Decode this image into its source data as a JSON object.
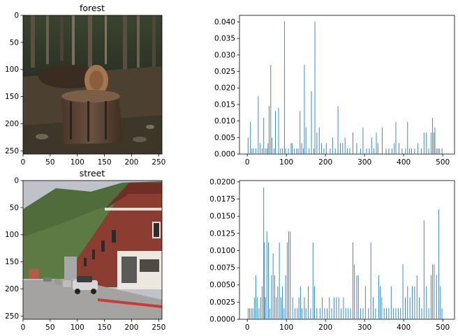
{
  "chart_data": [
    {
      "type": "image",
      "title": "forest",
      "image_description_icon": "forest-photo",
      "xlim": [
        0,
        256
      ],
      "ylim": [
        256,
        0
      ],
      "xticks": [
        0,
        50,
        100,
        150,
        200,
        250
      ],
      "yticks": [
        0,
        50,
        100,
        150,
        200,
        250
      ],
      "colors": {
        "sky": "#3c3f2c",
        "ground": "#4a3f2e",
        "stump": "#5a4535",
        "dark": "#22271a",
        "light_trunk": "#8a6a4a"
      }
    },
    {
      "type": "bar",
      "title": "",
      "xlabel": "",
      "ylabel": "",
      "xlim": [
        -20,
        530
      ],
      "ylim": [
        0,
        0.042
      ],
      "xticks": [
        0,
        100,
        200,
        300,
        400,
        500
      ],
      "yticks": [
        "0.000",
        "0.005",
        "0.010",
        "0.015",
        "0.020",
        "0.025",
        "0.030",
        "0.035",
        "0.040"
      ],
      "bar_color": "#1f77b4",
      "x": [
        2,
        8,
        12,
        16,
        22,
        28,
        33,
        38,
        42,
        46,
        50,
        53,
        56,
        60,
        63,
        68,
        72,
        80,
        85,
        90,
        95,
        98,
        105,
        112,
        115,
        120,
        126,
        130,
        135,
        139,
        143,
        146,
        150,
        158,
        164,
        170,
        173,
        178,
        184,
        190,
        196,
        202,
        212,
        218,
        225,
        232,
        238,
        244,
        250,
        256,
        262,
        270,
        280,
        290,
        296,
        305,
        312,
        318,
        324,
        330,
        334,
        345,
        355,
        362,
        370,
        376,
        380,
        388,
        396,
        405,
        410,
        415,
        420,
        428,
        436,
        445,
        452,
        458,
        464,
        470,
        474,
        477,
        480,
        484,
        488,
        492,
        498
      ],
      "values": [
        0.005,
        0.0097,
        0.0017,
        0.0017,
        0.0017,
        0.0175,
        0.0033,
        0.0017,
        0.011,
        0.0017,
        0.0017,
        0.0033,
        0.0145,
        0.027,
        0.005,
        0.0017,
        0.013,
        0.014,
        0.0017,
        0.0017,
        0.0402,
        0.0017,
        0.0017,
        0.0033,
        0.0033,
        0.0017,
        0.0017,
        0.0017,
        0.013,
        0.0033,
        0.0017,
        0.027,
        0.008,
        0.0017,
        0.019,
        0.0017,
        0.0402,
        0.0065,
        0.008,
        0.0033,
        0.0017,
        0.0033,
        0.0017,
        0.005,
        0.0017,
        0.0145,
        0.0033,
        0.0033,
        0.005,
        0.0017,
        0.0017,
        0.0065,
        0.0033,
        0.0017,
        0.008,
        0.0017,
        0.0017,
        0.005,
        0.0017,
        0.0065,
        0.0033,
        0.008,
        0.0017,
        0.0017,
        0.0017,
        0.0033,
        0.0097,
        0.0033,
        0.0017,
        0.0017,
        0.0097,
        0.0017,
        0.0017,
        0.0017,
        0.0033,
        0.0017,
        0.0065,
        0.0065,
        0.0017,
        0.0065,
        0.011,
        0.0065,
        0.008,
        0.0017,
        0.0017,
        0.0017,
        0.0017
      ]
    },
    {
      "type": "image",
      "title": "street",
      "image_description_icon": "street-photo",
      "xlim": [
        0,
        256
      ],
      "ylim": [
        256,
        0
      ],
      "xticks": [
        0,
        50,
        100,
        150,
        200,
        250
      ],
      "yticks": [
        0,
        50,
        100,
        150,
        200,
        250
      ],
      "colors": {
        "sky": "#b9bcc4",
        "hill": "#4e6b3a",
        "building": "#8a3b30",
        "road": "#a9a6a6",
        "trim": "#e8e4dc",
        "curb": "#c23a3a"
      }
    },
    {
      "type": "bar",
      "title": "",
      "xlabel": "",
      "ylabel": "",
      "xlim": [
        -20,
        530
      ],
      "ylim": [
        0,
        0.0202
      ],
      "xticks": [
        0,
        100,
        200,
        300,
        400,
        500
      ],
      "yticks": [
        "0.0000",
        "0.0025",
        "0.0050",
        "0.0075",
        "0.0100",
        "0.0125",
        "0.0150",
        "0.0175",
        "0.0200"
      ],
      "bar_color": "#1f77b4",
      "x": [
        2,
        6,
        10,
        14,
        18,
        22,
        26,
        30,
        34,
        38,
        42,
        44,
        46,
        50,
        54,
        58,
        62,
        66,
        70,
        74,
        78,
        82,
        86,
        90,
        94,
        98,
        102,
        106,
        110,
        116,
        122,
        128,
        132,
        136,
        140,
        146,
        150,
        156,
        162,
        168,
        172,
        178,
        186,
        192,
        198,
        204,
        210,
        216,
        222,
        228,
        234,
        240,
        246,
        252,
        258,
        264,
        270,
        274,
        280,
        284,
        290,
        296,
        302,
        310,
        316,
        322,
        328,
        336,
        340,
        344,
        350,
        356,
        362,
        368,
        374,
        380,
        386,
        392,
        398,
        404,
        410,
        416,
        422,
        428,
        434,
        440,
        446,
        452,
        458,
        464,
        470,
        474,
        478,
        484,
        490,
        494,
        498
      ],
      "values": [
        0.0016,
        0.0016,
        0.0016,
        0.0016,
        0.0032,
        0.0064,
        0.0032,
        0.0016,
        0.0032,
        0.0048,
        0.0192,
        0.0112,
        0.0032,
        0.0128,
        0.0112,
        0.0016,
        0.0064,
        0.0096,
        0.0064,
        0.0032,
        0.0048,
        0.0112,
        0.0032,
        0.0048,
        0.0016,
        0.0064,
        0.0112,
        0.0128,
        0.0128,
        0.0032,
        0.0016,
        0.0016,
        0.0032,
        0.0048,
        0.0016,
        0.0032,
        0.0016,
        0.0048,
        0.0016,
        0.0112,
        0.0048,
        0.0016,
        0.0016,
        0.0032,
        0.0016,
        0.0016,
        0.0032,
        0.0016,
        0.0032,
        0.0032,
        0.0032,
        0.0016,
        0.0032,
        0.0016,
        0.0016,
        0.0016,
        0.0112,
        0.008,
        0.0064,
        0.0064,
        0.0016,
        0.0016,
        0.0048,
        0.0016,
        0.0112,
        0.0032,
        0.0016,
        0.0064,
        0.0048,
        0.0032,
        0.0016,
        0.0016,
        0.0016,
        0.0048,
        0.0016,
        0.0016,
        0.0016,
        0.0016,
        0.008,
        0.0032,
        0.0048,
        0.0032,
        0.0048,
        0.0048,
        0.0064,
        0.0032,
        0.0016,
        0.0144,
        0.0048,
        0.0016,
        0.0064,
        0.008,
        0.008,
        0.0064,
        0.016,
        0.0048,
        0.0016
      ]
    }
  ]
}
